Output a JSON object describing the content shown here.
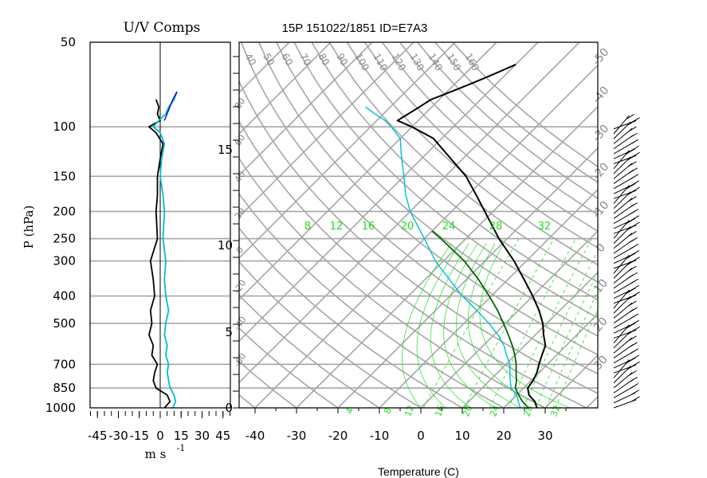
{
  "left_panel": {
    "title": "U/V Comps",
    "ylabel": "P (hPa)",
    "xlabel": "m s",
    "xlabel_exp": "-1",
    "pressure_ticks": [
      "50",
      "100",
      "150",
      "200",
      "250",
      "300",
      "400",
      "500",
      "700",
      "850",
      "1000"
    ],
    "x_ticks": [
      "-45",
      "-30",
      "-15",
      "0",
      "15",
      "30",
      "45"
    ]
  },
  "right_panel": {
    "title": "15P 151022/1851 ID=E7A3",
    "xlabel": "Temperature (C)",
    "temp_ticks": [
      "-40",
      "-30",
      "-20",
      "-10",
      "0",
      "10",
      "20",
      "30"
    ],
    "height_ticks": [
      "0",
      "5",
      "10",
      "15"
    ],
    "theta_labels": [
      "40",
      "50",
      "60",
      "70",
      "80",
      "90",
      "100",
      "110",
      "120",
      "130",
      "140",
      "150",
      "160"
    ],
    "isotherm_labels_right": [
      "-50",
      "-40",
      "-30",
      "-20",
      "-10",
      "0",
      "10",
      "20",
      "30"
    ],
    "isotherm_labels_left": [
      "80",
      "60",
      "40",
      "20",
      "0",
      "-20",
      "-40",
      "-60"
    ],
    "mixing_ratio_labels_top": [
      "8",
      "12",
      "16",
      "20",
      "24",
      "28",
      "32"
    ],
    "mixing_ratio_labels_bottom": [
      "4",
      "8",
      "12",
      "16",
      "20",
      "24",
      "28",
      "32"
    ]
  },
  "colors": {
    "grid": "#a6a6a6",
    "moisture": "#22dd22",
    "temperature": "#000000",
    "dewpoint": "#00bcd4",
    "parcel": "#006400",
    "u_comp": "#000000",
    "v_comp": "#00bcd4",
    "wind_top": "#0000cc"
  },
  "chart_data": {
    "type": "line",
    "title": "15P 151022/1851 ID=E7A3",
    "xlabel": "Temperature (C)",
    "xlim": [
      -44,
      42
    ],
    "ylim_hPa": [
      1000,
      50
    ],
    "series": [
      {
        "points_hPa_C": [
          [
            1000,
            28
          ],
          [
            950,
            26
          ],
          [
            900,
            23
          ],
          [
            850,
            21
          ],
          [
            800,
            20.5
          ],
          [
            750,
            19.5
          ],
          [
            700,
            18
          ],
          [
            650,
            16.5
          ],
          [
            600,
            15
          ],
          [
            550,
            12
          ],
          [
            500,
            9
          ],
          [
            450,
            5
          ],
          [
            400,
            0
          ],
          [
            350,
            -6
          ],
          [
            300,
            -13
          ],
          [
            250,
            -22
          ],
          [
            200,
            -32
          ],
          [
            175,
            -38
          ],
          [
            150,
            -45
          ],
          [
            125,
            -55
          ],
          [
            110,
            -62
          ],
          [
            100,
            -70
          ],
          [
            95,
            -75
          ],
          [
            85,
            -73
          ],
          [
            80,
            -72
          ],
          [
            75,
            -69
          ],
          [
            70,
            -66
          ],
          [
            65,
            -63
          ],
          [
            60,
            -60
          ]
        ]
      },
      {
        "points_hPa_C": [
          [
            1000,
            24
          ],
          [
            950,
            22
          ],
          [
            900,
            20
          ],
          [
            850,
            17
          ],
          [
            800,
            15
          ],
          [
            750,
            13
          ],
          [
            700,
            11
          ],
          [
            650,
            8
          ],
          [
            600,
            5
          ],
          [
            550,
            1
          ],
          [
            500,
            -4
          ],
          [
            450,
            -10
          ],
          [
            400,
            -17
          ],
          [
            350,
            -24
          ],
          [
            300,
            -32
          ],
          [
            250,
            -40
          ],
          [
            200,
            -50
          ],
          [
            175,
            -55
          ],
          [
            150,
            -60
          ],
          [
            125,
            -66
          ],
          [
            110,
            -70
          ],
          [
            100,
            -75
          ],
          [
            95,
            -78
          ],
          [
            90,
            -82
          ],
          [
            85,
            -86
          ]
        ]
      },
      {
        "points_hPa_C": [
          [
            1000,
            26
          ],
          [
            950,
            23
          ],
          [
            900,
            20.5
          ],
          [
            850,
            18
          ],
          [
            800,
            16.5
          ],
          [
            750,
            14.5
          ],
          [
            700,
            12.5
          ],
          [
            650,
            10
          ],
          [
            600,
            7
          ],
          [
            550,
            3.5
          ],
          [
            500,
            -0.5
          ],
          [
            450,
            -5
          ],
          [
            400,
            -10.5
          ],
          [
            350,
            -17
          ],
          [
            300,
            -25
          ],
          [
            250,
            -36
          ],
          [
            235,
            -40
          ]
        ]
      }
    ],
    "wind_profile": {
      "xlim_ms": [
        -50,
        50
      ],
      "series": [
        {
          "points_hPa_ms": [
            [
              1000,
              3
            ],
            [
              950,
              7
            ],
            [
              900,
              5
            ],
            [
              850,
              -3
            ],
            [
              800,
              -5
            ],
            [
              750,
              -4
            ],
            [
              700,
              -2
            ],
            [
              650,
              -6
            ],
            [
              600,
              -5
            ],
            [
              550,
              -8
            ],
            [
              500,
              -6
            ],
            [
              450,
              -7
            ],
            [
              400,
              -4
            ],
            [
              350,
              -5
            ],
            [
              300,
              -7
            ],
            [
              250,
              -2
            ],
            [
              200,
              -3
            ],
            [
              175,
              -2
            ],
            [
              150,
              -2
            ],
            [
              130,
              0
            ],
            [
              115,
              2
            ],
            [
              105,
              -3
            ],
            [
              100,
              -8
            ],
            [
              95,
              0
            ],
            [
              90,
              -2
            ],
            [
              85,
              -1
            ],
            [
              80,
              -3
            ]
          ]
        },
        {
          "points_hPa_ms": [
            [
              1000,
              9
            ],
            [
              950,
              11
            ],
            [
              900,
              10
            ],
            [
              850,
              7
            ],
            [
              800,
              6
            ],
            [
              750,
              5
            ],
            [
              700,
              6
            ],
            [
              650,
              4
            ],
            [
              600,
              5
            ],
            [
              550,
              3
            ],
            [
              500,
              4
            ],
            [
              450,
              6
            ],
            [
              400,
              4
            ],
            [
              350,
              3
            ],
            [
              300,
              4
            ],
            [
              250,
              2
            ],
            [
              200,
              3
            ],
            [
              175,
              2
            ],
            [
              150,
              0
            ],
            [
              130,
              1
            ],
            [
              115,
              3
            ],
            [
              105,
              0
            ],
            [
              100,
              -5
            ],
            [
              95,
              -1
            ],
            [
              90,
              4
            ],
            [
              85,
              6
            ],
            [
              80,
              10
            ],
            [
              75,
              12
            ]
          ]
        }
      ]
    }
  }
}
